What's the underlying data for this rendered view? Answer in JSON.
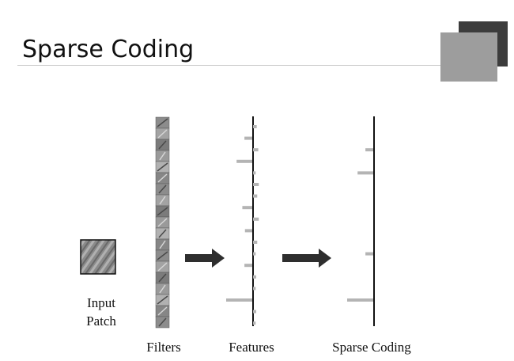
{
  "slide": {
    "title": "Sparse Coding"
  },
  "diagram": {
    "labels": {
      "input_line1": "Input",
      "input_line2": "Patch",
      "filters": "Filters",
      "features": "Features",
      "sparse": "Sparse Coding"
    },
    "colors": {
      "bar": "#b4b4b4",
      "axis": "#111111",
      "arrow": "#2e2e2e",
      "accent_dark": "#3c3c3c",
      "accent_light": "#9d9d9d"
    },
    "feature_coefficients": [
      0.14,
      0.3,
      0.2,
      0.6,
      0.1,
      0.22,
      0.16,
      0.38,
      0.22,
      0.28,
      0.16,
      0.1,
      0.3,
      0.12,
      0.1,
      1.0,
      0.12,
      0.1
    ],
    "sparse_coefficients": [
      0.0,
      0.0,
      0.3,
      0.0,
      0.6,
      0.0,
      0.0,
      0.0,
      0.0,
      0.0,
      0.0,
      0.3,
      0.0,
      0.0,
      0.0,
      1.0,
      0.0,
      0.0
    ]
  }
}
